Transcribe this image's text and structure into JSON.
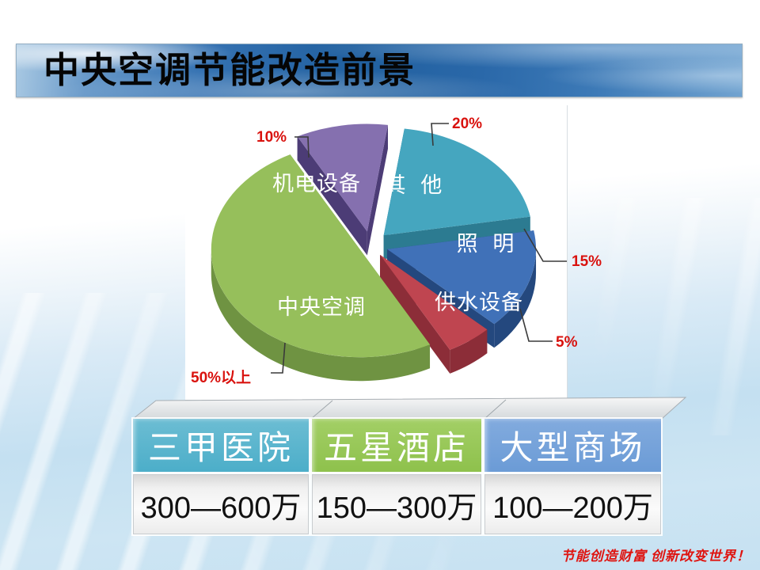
{
  "slide": {
    "title": "中央空调节能改造前景",
    "footer": "节能创造财富 创新改变世界！",
    "footer_color": "#df1410",
    "accent_red": "#d9120e"
  },
  "chart_data": {
    "type": "pie",
    "title": "",
    "unit": "percent of building energy use",
    "start_angle": -82,
    "legend_position": "on-slice",
    "segments": [
      {
        "label": "其 他",
        "value": 20,
        "pct_label": "20%",
        "color": "#45a6bf",
        "dark": "#2c7b91"
      },
      {
        "label": "照 明",
        "value": 15,
        "pct_label": "15%",
        "color": "#4071b8",
        "dark": "#24487e"
      },
      {
        "label": "供水设备",
        "value": 5,
        "pct_label": "5%",
        "color": "#bf4550",
        "dark": "#8c2d38"
      },
      {
        "label": "中央空调",
        "value": 50,
        "pct_label": "50%以上",
        "color": "#96bf5b",
        "dark": "#6f9342"
      },
      {
        "label": "机电设备",
        "value": 10,
        "pct_label": "10%",
        "color": "#8570af",
        "dark": "#4c3c76"
      }
    ]
  },
  "table": {
    "columns": [
      {
        "header": "三甲医院",
        "value": "300—600万",
        "header_color_top": "#6cbdd3",
        "header_color_bottom": "#4caec9"
      },
      {
        "header": "五星酒店",
        "value": "150—300万",
        "header_color_top": "#a3cf66",
        "header_color_bottom": "#8ec14c"
      },
      {
        "header": "大型商场",
        "value": "100—200万",
        "header_color_top": "#82abde",
        "header_color_bottom": "#6b9bd6"
      }
    ]
  }
}
